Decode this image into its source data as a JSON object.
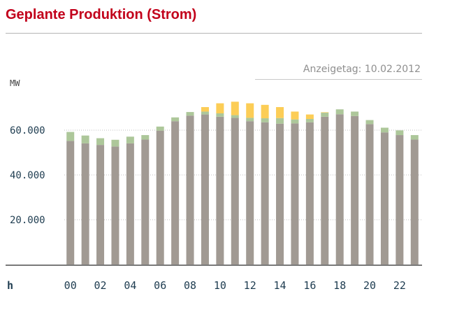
{
  "header": {
    "title": "Geplante Produktion (Strom)",
    "display_date": "Anzeigetag: 10.02.2012"
  },
  "colors": {
    "title": "#c2001b",
    "base": "#a19a93",
    "green": "#adc79a",
    "yellow": "#fccd56",
    "text_dark": "#1e3c50",
    "grid": "#bfbfbf"
  },
  "chart_data": {
    "type": "bar",
    "stacked": true,
    "ylabel": "MW",
    "xlabel": "h",
    "ylim": [
      0,
      80000
    ],
    "yticks": [
      {
        "value": 20000,
        "label": "20.000"
      },
      {
        "value": 40000,
        "label": "40.000"
      },
      {
        "value": 60000,
        "label": "60.000"
      }
    ],
    "categories": [
      "00",
      "01",
      "02",
      "03",
      "04",
      "05",
      "06",
      "07",
      "08",
      "09",
      "10",
      "11",
      "12",
      "13",
      "14",
      "15",
      "16",
      "17",
      "18",
      "19",
      "20",
      "21",
      "22",
      "23"
    ],
    "x_tick_labels": [
      "00",
      "02",
      "04",
      "06",
      "08",
      "10",
      "12",
      "14",
      "16",
      "18",
      "20",
      "22"
    ],
    "series": [
      {
        "color": "#a19a93",
        "values": [
          55200,
          54100,
          53400,
          52700,
          54100,
          55800,
          59800,
          64000,
          66500,
          67000,
          66000,
          65500,
          64000,
          63500,
          62900,
          63000,
          63500,
          66000,
          67100,
          66300,
          62700,
          59000,
          57800,
          55800
        ]
      },
      {
        "color": "#adc79a",
        "values": [
          4000,
          3500,
          3000,
          3000,
          3000,
          2000,
          1800,
          1700,
          1600,
          1300,
          1500,
          1200,
          1500,
          1800,
          2500,
          1800,
          1500,
          1800,
          2200,
          2000,
          1800,
          2100,
          2100,
          2000
        ]
      },
      {
        "color": "#fccd56",
        "values": [
          0,
          0,
          0,
          0,
          0,
          0,
          0,
          0,
          0,
          2000,
          4500,
          6000,
          6500,
          6000,
          4900,
          3500,
          2000,
          200,
          0,
          0,
          0,
          0,
          0,
          0
        ]
      }
    ],
    "grid": true,
    "legend": "none"
  }
}
